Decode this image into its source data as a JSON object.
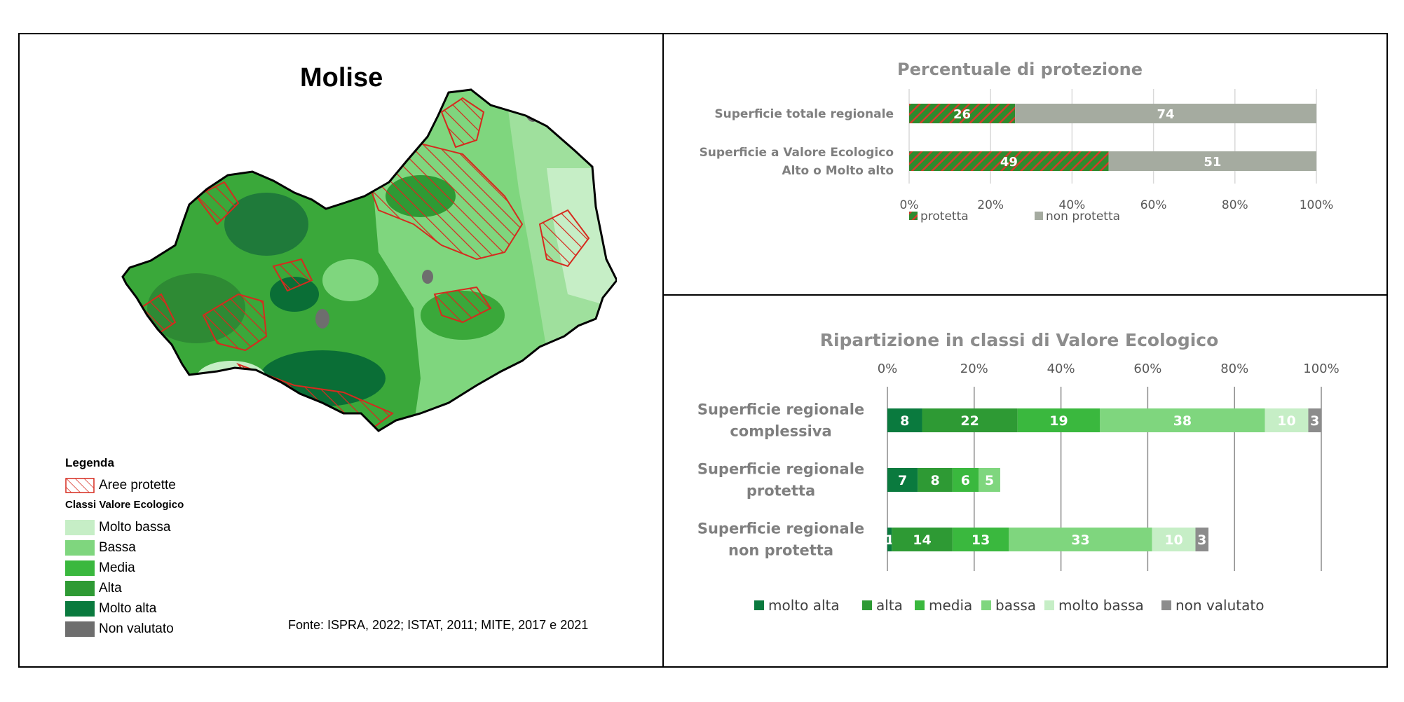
{
  "colors": {
    "molto_alta": "#0a7a3e",
    "alta": "#2e9a34",
    "media": "#3ab83e",
    "bassa": "#7fd67e",
    "molto_bassa": "#c6eec6",
    "non_valutato": "#8c8c8c",
    "protetta": "#2e8b2e",
    "protetta_hatch": "#d63a2a",
    "non_protetta": "#a5aba0",
    "title_gray": "#8c8c8c"
  },
  "map": {
    "title": "Molise",
    "legend_title": "Legenda",
    "protected_label": "Aree protette",
    "classes_title": "Classi Valore Ecologico",
    "classes": [
      {
        "label": "Molto bassa",
        "color": "#c6eec6"
      },
      {
        "label": "Bassa",
        "color": "#7fd67e"
      },
      {
        "label": "Media",
        "color": "#3ab83e"
      },
      {
        "label": "Alta",
        "color": "#2e9a34"
      },
      {
        "label": "Molto alta",
        "color": "#0a7a3e"
      },
      {
        "label": "Non valutato",
        "color": "#6e6e6e"
      }
    ],
    "source": "Fonte: ISPRA, 2022; ISTAT, 2011; MITE, 2017 e 2021"
  },
  "chart_data": [
    {
      "type": "bar",
      "orientation": "horizontal",
      "stacked": true,
      "title": "Percentuale di protezione",
      "categories": [
        [
          "Superficie totale regionale"
        ],
        [
          "Superficie a Valore Ecologico",
          "Alto o Molto alto"
        ]
      ],
      "series": [
        {
          "name": "protetta",
          "values": [
            26,
            49
          ]
        },
        {
          "name": "non protetta",
          "values": [
            74,
            51
          ]
        }
      ],
      "xlim": [
        0,
        100
      ],
      "xticks": [
        "0%",
        "20%",
        "40%",
        "60%",
        "80%",
        "100%"
      ],
      "grid": true,
      "legend": "bottom"
    },
    {
      "type": "bar",
      "orientation": "horizontal",
      "stacked": true,
      "title": "Ripartizione in classi di Valore Ecologico",
      "categories": [
        [
          "Superficie regionale",
          "complessiva"
        ],
        [
          "Superficie regionale",
          "protetta"
        ],
        [
          "Superficie regionale",
          "non protetta"
        ]
      ],
      "series": [
        {
          "name": "molto alta",
          "values": [
            8,
            7,
            1
          ]
        },
        {
          "name": "alta",
          "values": [
            22,
            8,
            14
          ]
        },
        {
          "name": "media",
          "values": [
            19,
            6,
            13
          ]
        },
        {
          "name": "bassa",
          "values": [
            38,
            5,
            33
          ]
        },
        {
          "name": "molto bassa",
          "values": [
            10,
            0,
            10
          ]
        },
        {
          "name": "non valutato",
          "values": [
            3,
            0,
            3
          ]
        }
      ],
      "xlim": [
        0,
        100
      ],
      "xticks": [
        "0%",
        "20%",
        "40%",
        "60%",
        "80%",
        "100%"
      ],
      "grid": true,
      "legend": "bottom"
    }
  ]
}
